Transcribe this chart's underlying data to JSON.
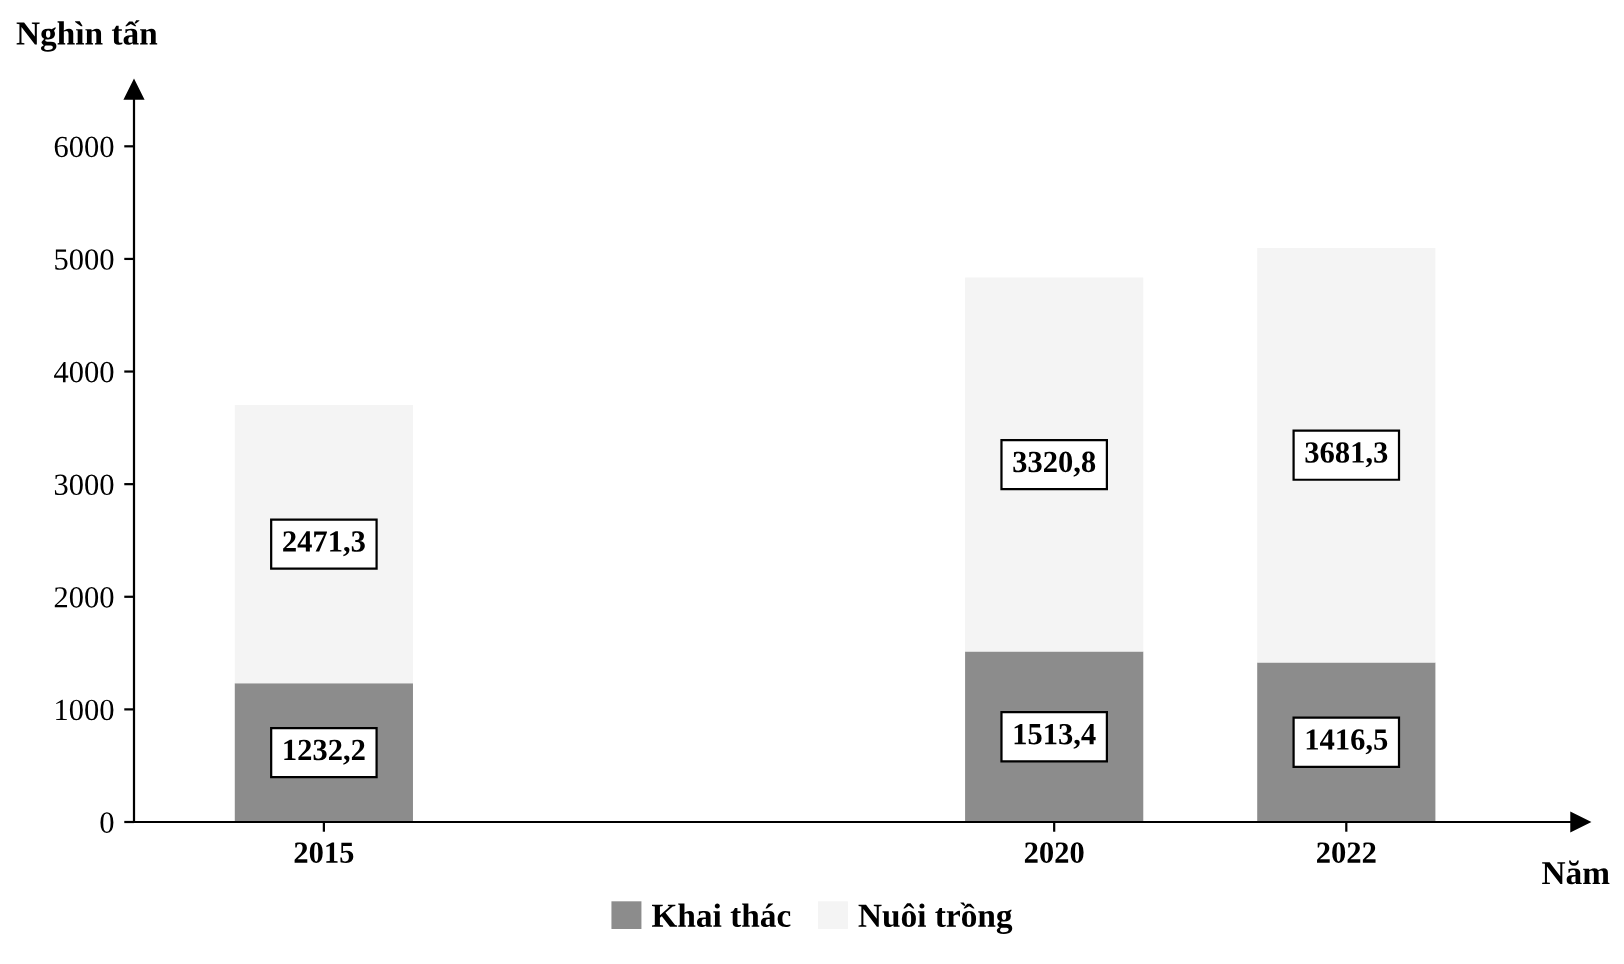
{
  "chart_data": {
    "type": "bar",
    "stacked": true,
    "x": [
      2015,
      2020,
      2022
    ],
    "xlim": [
      2013.7,
      2023.6
    ],
    "xticks": [
      2015,
      2020,
      2022
    ],
    "ylim": [
      0,
      6500
    ],
    "yticks": [
      0,
      1000,
      2000,
      3000,
      4000,
      5000,
      6000
    ],
    "ylabel": "Nghìn tấn",
    "xlabel": "Năm",
    "series": [
      {
        "name": "Khai thác",
        "color": "#8c8c8c",
        "values": [
          1232.2,
          1513.4,
          1416.5
        ],
        "value_labels": [
          "1232,2",
          "1513,4",
          "1416,5"
        ]
      },
      {
        "name": "Nuôi trồng",
        "color": "#f4f4f4",
        "values": [
          2471.3,
          3320.8,
          3681.3
        ],
        "value_labels": [
          "2471,3",
          "3320,8",
          "3681,3"
        ]
      }
    ],
    "legend": "bottom",
    "grid": false
  }
}
